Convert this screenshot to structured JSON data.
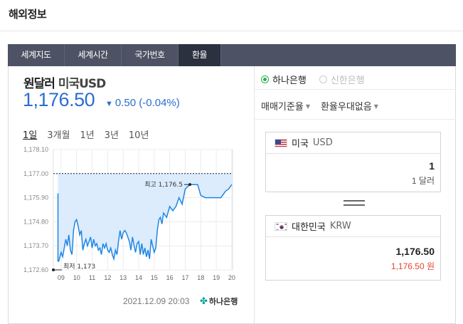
{
  "header": {
    "title": "해외정보"
  },
  "tabs": [
    "세계지도",
    "세계시간",
    "국가번호",
    "환율"
  ],
  "active_tab": "환율",
  "rate": {
    "name": "원달러",
    "sub": "미국USD",
    "value": "1,176.50",
    "change_icon": "down-triangle-icon",
    "change": "0.50 (-0.04%)"
  },
  "periods": [
    "1일",
    "3개월",
    "1년",
    "3년",
    "10년"
  ],
  "active_period": "1일",
  "chart_data": {
    "type": "area",
    "x_tick_labels": [
      "09",
      "10",
      "11",
      "12",
      "13",
      "14",
      "15",
      "16",
      "17",
      "18",
      "19",
      "20"
    ],
    "y_tick_labels": [
      "1,178.10",
      "1,177.00",
      "1,175.90",
      "1,174.80",
      "1,173.70",
      "1,172.60"
    ],
    "ylim": [
      1172.6,
      1178.1
    ],
    "reference_line": 1177.0,
    "x": [
      8.8,
      8.8,
      8.85,
      9.0,
      9.1,
      9.2,
      9.3,
      9.4,
      9.5,
      9.6,
      9.7,
      9.8,
      9.9,
      10.0,
      10.1,
      10.2,
      10.3,
      10.4,
      10.5,
      10.6,
      10.7,
      10.8,
      10.9,
      11.0,
      11.1,
      11.2,
      11.3,
      11.4,
      11.5,
      11.6,
      11.7,
      11.8,
      11.9,
      12.0,
      12.1,
      12.2,
      12.3,
      12.4,
      12.5,
      12.6,
      12.7,
      12.8,
      12.9,
      13.0,
      13.1,
      13.2,
      13.3,
      13.4,
      13.5,
      13.6,
      13.7,
      13.8,
      13.9,
      14.0,
      14.1,
      14.2,
      14.3,
      14.4,
      14.5,
      14.6,
      14.7,
      14.8,
      14.9,
      15.0,
      15.1,
      15.2,
      15.3,
      15.4,
      15.5,
      15.6,
      15.8,
      16.0,
      16.2,
      16.4,
      16.6,
      16.8,
      17.0,
      17.3,
      17.5,
      17.8,
      18.0,
      18.3,
      18.5,
      18.8,
      19.0,
      19.3,
      19.6,
      19.8,
      20.0
    ],
    "y": [
      1176.1,
      1173.0,
      1173.0,
      1173.4,
      1173.2,
      1173.6,
      1174.0,
      1173.7,
      1174.2,
      1173.5,
      1173.3,
      1174.4,
      1174.8,
      1174.9,
      1174.6,
      1174.2,
      1174.4,
      1173.5,
      1173.8,
      1174.0,
      1173.7,
      1173.9,
      1174.1,
      1173.6,
      1174.0,
      1173.7,
      1173.8,
      1173.5,
      1173.6,
      1173.3,
      1173.8,
      1173.6,
      1173.8,
      1173.5,
      1173.4,
      1173.6,
      1173.3,
      1173.1,
      1173.5,
      1173.3,
      1173.9,
      1174.4,
      1174.0,
      1174.3,
      1174.4,
      1174.3,
      1174.1,
      1173.9,
      1173.5,
      1174.1,
      1173.7,
      1173.4,
      1173.8,
      1173.9,
      1173.3,
      1173.8,
      1173.3,
      1173.6,
      1173.2,
      1173.5,
      1173.1,
      1174.0,
      1173.7,
      1173.4,
      1173.6,
      1174.4,
      1174.9,
      1175.0,
      1174.7,
      1175.2,
      1175.0,
      1175.5,
      1175.3,
      1175.5,
      1175.9,
      1175.6,
      1176.3,
      1176.5,
      1176.5,
      1176.5,
      1176.0,
      1175.9,
      1175.9,
      1175.9,
      1175.9,
      1175.9,
      1176.2,
      1176.3,
      1176.5
    ],
    "max_label": "최고 1,176.5",
    "min_label": "최저 1,173"
  },
  "timestamp": "2021.12.09 20:03",
  "bank_logo_text": "하나은행",
  "banks": [
    {
      "label": "하나은행",
      "selected": true
    },
    {
      "label": "신한은행",
      "selected": false
    }
  ],
  "selects": [
    "매매기준율",
    "환율우대없음"
  ],
  "converter": {
    "from": {
      "flag": "us-flag-icon",
      "country": "미국",
      "code": "USD",
      "amount": "1",
      "amount_unit": "1 달러"
    },
    "to": {
      "flag": "kr-flag-icon",
      "country": "대한민국",
      "code": "KRW",
      "amount": "1,176.50",
      "amount_unit": "1,176.50 원"
    }
  },
  "colors": {
    "rate_blue": "#2b6ecf",
    "chart_line": "#1f86e3",
    "chart_fill": "#dcecfd",
    "radio_green": "#2bb14a",
    "krw_amount": "#e8452c",
    "tab_bg": "#4d5364",
    "tab_active": "#2c3140"
  }
}
